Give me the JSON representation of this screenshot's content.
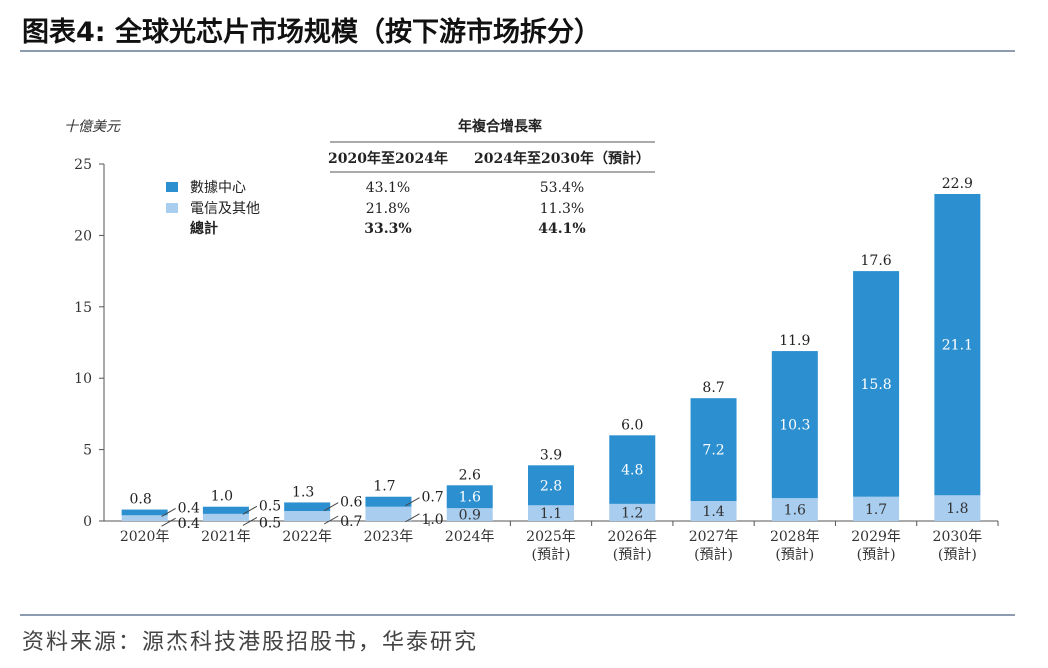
{
  "title": "图表4:  全球光芯片市场规模（按下游市场拆分）",
  "source": "资料来源：源杰科技港股招股书，华泰研究",
  "chart_data": {
    "type": "bar",
    "stacked": true,
    "yunit": "十億美元",
    "ylim": [
      0,
      25
    ],
    "yticks": [
      0,
      5,
      10,
      15,
      20,
      25
    ],
    "categories": [
      [
        "2020年"
      ],
      [
        "2021年"
      ],
      [
        "2022年"
      ],
      [
        "2023年"
      ],
      [
        "2024年"
      ],
      [
        "2025年",
        "(預計)"
      ],
      [
        "2026年",
        "(預計)"
      ],
      [
        "2027年",
        "(預計)"
      ],
      [
        "2028年",
        "(預計)"
      ],
      [
        "2029年",
        "(預計)"
      ],
      [
        "2030年",
        "(預計)"
      ]
    ],
    "series": [
      {
        "name": "電信及其他",
        "color": "#a8cdef",
        "values": [
          0.4,
          0.5,
          0.7,
          1.0,
          0.9,
          1.1,
          1.2,
          1.4,
          1.6,
          1.7,
          1.8
        ]
      },
      {
        "name": "數據中心",
        "color": "#2b8fd0",
        "values": [
          0.4,
          0.5,
          0.6,
          0.7,
          1.6,
          2.8,
          4.8,
          7.2,
          10.3,
          15.8,
          21.1
        ]
      }
    ],
    "totals": [
      0.8,
      1.0,
      1.3,
      1.7,
      2.6,
      3.9,
      6.0,
      8.7,
      11.9,
      17.6,
      22.9
    ],
    "cagr_table": {
      "header": "年複合增長率",
      "columns": [
        "2020年至2024年",
        "2024年至2030年（預計）"
      ],
      "rows": [
        {
          "label": "數據中心",
          "values": [
            "43.1%",
            "53.4%"
          ],
          "bold": false
        },
        {
          "label": "電信及其他",
          "values": [
            "21.8%",
            "11.3%"
          ],
          "bold": false
        },
        {
          "label": "總計",
          "values": [
            "33.3%",
            "44.1%"
          ],
          "bold": true
        }
      ]
    }
  }
}
